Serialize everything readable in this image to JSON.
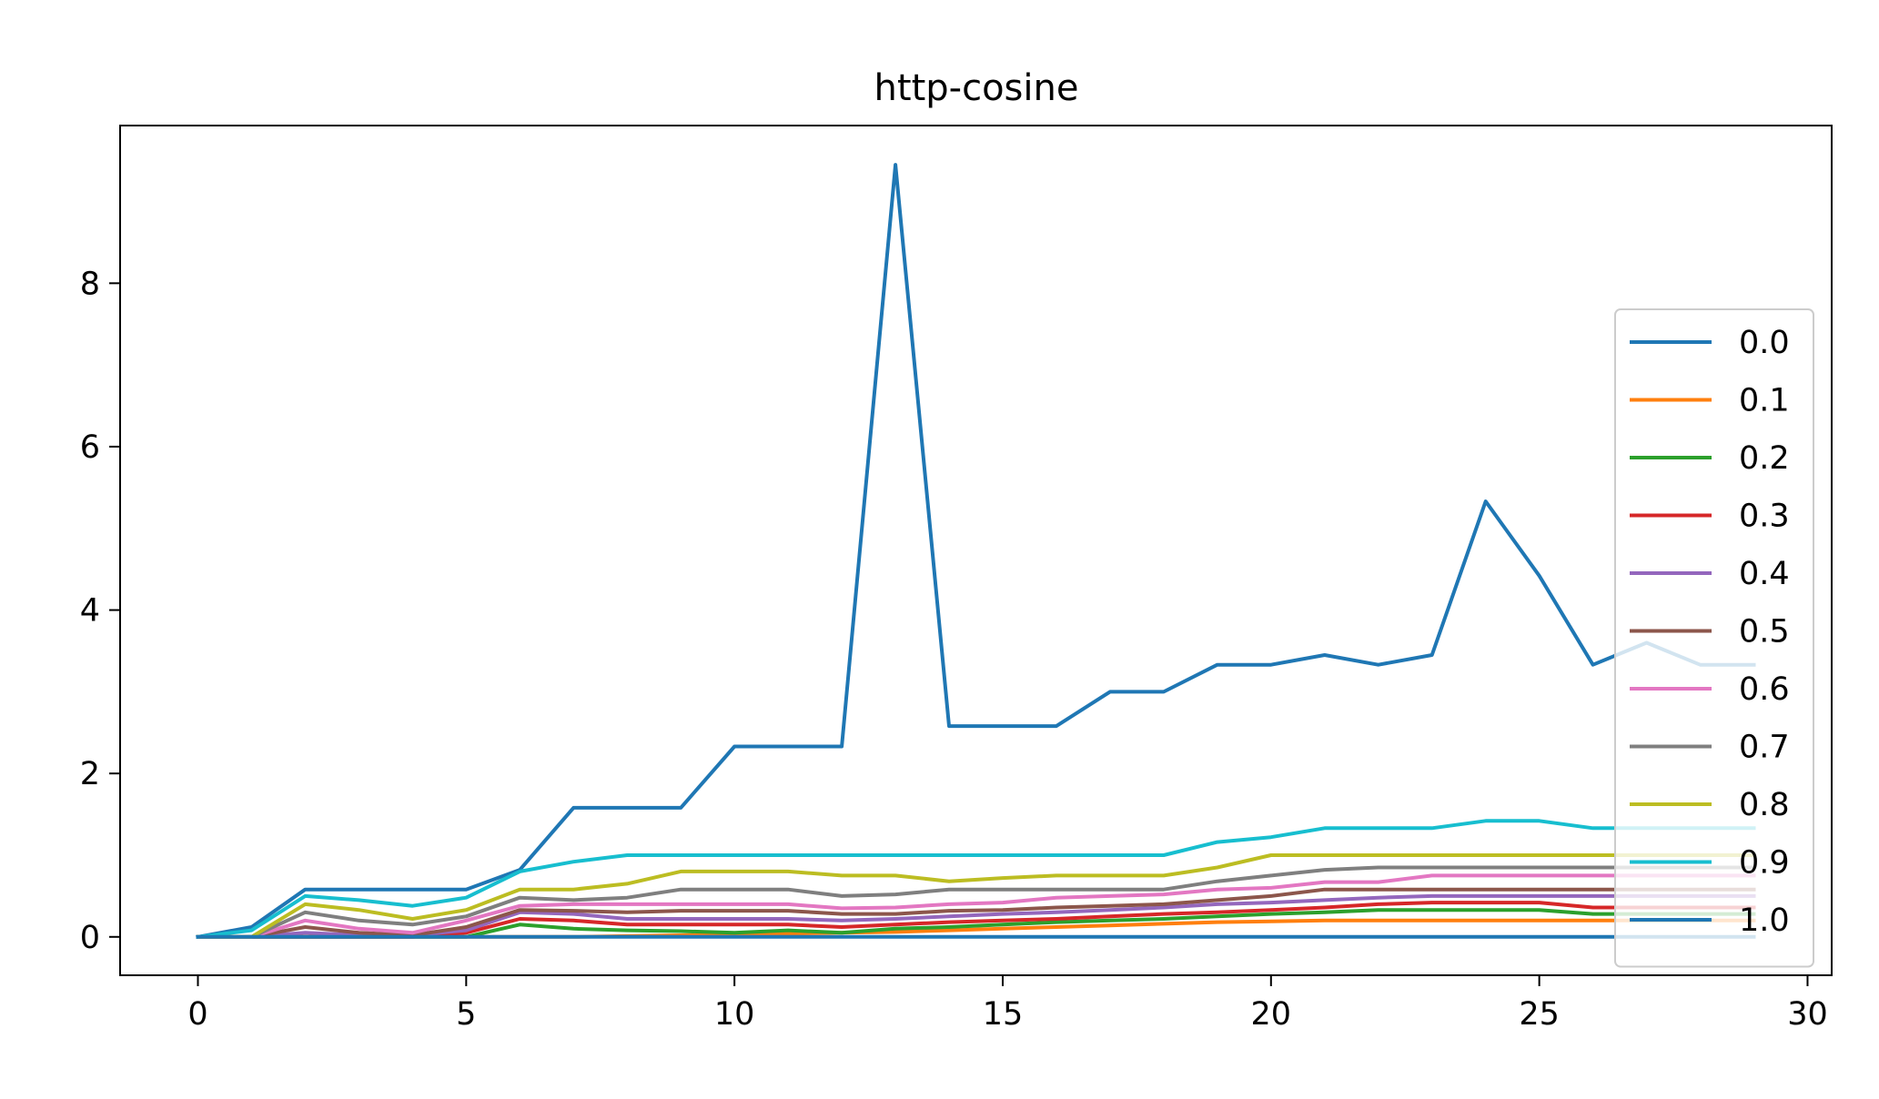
{
  "chart_data": {
    "type": "line",
    "title": "http-cosine",
    "xlabel": "",
    "ylabel": "",
    "xlim": [
      -1.45,
      30.45
    ],
    "ylim": [
      -0.47,
      9.93
    ],
    "x_ticks": [
      0,
      5,
      10,
      15,
      20,
      25,
      30
    ],
    "y_ticks": [
      0,
      2,
      4,
      6,
      8
    ],
    "grid": false,
    "legend_position": "center-right",
    "x": [
      0,
      1,
      2,
      3,
      4,
      5,
      6,
      7,
      8,
      9,
      10,
      11,
      12,
      13,
      14,
      15,
      16,
      17,
      18,
      19,
      20,
      21,
      22,
      23,
      24,
      25,
      26,
      27,
      28,
      29
    ],
    "series": [
      {
        "name": "0.0",
        "color": "#1f77b4",
        "values": [
          0,
          0.12,
          0.58,
          0.58,
          0.58,
          0.58,
          0.82,
          1.58,
          1.58,
          1.58,
          2.33,
          2.33,
          2.33,
          9.45,
          2.58,
          2.58,
          2.58,
          3.0,
          3.0,
          3.33,
          3.33,
          3.45,
          3.33,
          3.45,
          5.33,
          4.42,
          3.33,
          3.6,
          3.33,
          3.33
        ]
      },
      {
        "name": "0.1",
        "color": "#ff7f0e",
        "values": [
          0,
          0,
          0,
          0,
          0,
          0,
          0,
          0,
          0.01,
          0.02,
          0.03,
          0.04,
          0.05,
          0.06,
          0.08,
          0.1,
          0.12,
          0.14,
          0.16,
          0.18,
          0.19,
          0.2,
          0.2,
          0.2,
          0.2,
          0.2,
          0.2,
          0.2,
          0.2,
          0.2
        ]
      },
      {
        "name": "0.2",
        "color": "#2ca02c",
        "values": [
          0,
          0,
          0,
          0,
          0,
          0,
          0.15,
          0.1,
          0.08,
          0.07,
          0.05,
          0.08,
          0.05,
          0.1,
          0.12,
          0.15,
          0.18,
          0.2,
          0.22,
          0.25,
          0.28,
          0.3,
          0.33,
          0.33,
          0.33,
          0.33,
          0.28,
          0.28,
          0.28,
          0.28
        ]
      },
      {
        "name": "0.3",
        "color": "#d62728",
        "values": [
          0,
          0,
          0,
          0,
          0,
          0.05,
          0.22,
          0.2,
          0.15,
          0.15,
          0.15,
          0.15,
          0.12,
          0.15,
          0.18,
          0.2,
          0.22,
          0.25,
          0.28,
          0.3,
          0.33,
          0.36,
          0.4,
          0.42,
          0.42,
          0.42,
          0.36,
          0.36,
          0.36,
          0.36
        ]
      },
      {
        "name": "0.4",
        "color": "#9467bd",
        "values": [
          0,
          0,
          0.05,
          0.02,
          0.02,
          0.08,
          0.3,
          0.28,
          0.22,
          0.22,
          0.22,
          0.22,
          0.2,
          0.22,
          0.25,
          0.28,
          0.3,
          0.33,
          0.36,
          0.4,
          0.42,
          0.45,
          0.48,
          0.5,
          0.5,
          0.5,
          0.5,
          0.5,
          0.5,
          0.5
        ]
      },
      {
        "name": "0.5",
        "color": "#8c564b",
        "values": [
          0,
          0,
          0.12,
          0.05,
          0.02,
          0.12,
          0.33,
          0.32,
          0.3,
          0.32,
          0.32,
          0.32,
          0.28,
          0.28,
          0.32,
          0.33,
          0.36,
          0.38,
          0.4,
          0.45,
          0.5,
          0.58,
          0.58,
          0.58,
          0.58,
          0.58,
          0.58,
          0.58,
          0.58,
          0.58
        ]
      },
      {
        "name": "0.6",
        "color": "#e377c2",
        "values": [
          0,
          0,
          0.2,
          0.1,
          0.05,
          0.2,
          0.38,
          0.4,
          0.4,
          0.4,
          0.4,
          0.4,
          0.35,
          0.36,
          0.4,
          0.42,
          0.48,
          0.5,
          0.52,
          0.58,
          0.6,
          0.67,
          0.67,
          0.75,
          0.75,
          0.75,
          0.75,
          0.75,
          0.75,
          0.75
        ]
      },
      {
        "name": "0.7",
        "color": "#7f7f7f",
        "values": [
          0,
          0,
          0.3,
          0.2,
          0.15,
          0.25,
          0.48,
          0.45,
          0.48,
          0.58,
          0.58,
          0.58,
          0.5,
          0.52,
          0.58,
          0.58,
          0.58,
          0.58,
          0.58,
          0.68,
          0.75,
          0.82,
          0.85,
          0.85,
          0.85,
          0.85,
          0.85,
          0.85,
          0.85,
          0.85
        ]
      },
      {
        "name": "0.8",
        "color": "#bcbd22",
        "values": [
          0,
          0,
          0.4,
          0.33,
          0.22,
          0.33,
          0.58,
          0.58,
          0.65,
          0.8,
          0.8,
          0.8,
          0.75,
          0.75,
          0.68,
          0.72,
          0.75,
          0.75,
          0.75,
          0.85,
          1.0,
          1.0,
          1.0,
          1.0,
          1.0,
          1.0,
          1.0,
          1.0,
          1.0,
          1.0
        ]
      },
      {
        "name": "0.9",
        "color": "#17becf",
        "values": [
          0,
          0.08,
          0.5,
          0.45,
          0.38,
          0.48,
          0.8,
          0.92,
          1.0,
          1.0,
          1.0,
          1.0,
          1.0,
          1.0,
          1.0,
          1.0,
          1.0,
          1.0,
          1.0,
          1.16,
          1.22,
          1.33,
          1.33,
          1.33,
          1.42,
          1.42,
          1.33,
          1.33,
          1.33,
          1.33
        ]
      },
      {
        "name": "1.0",
        "color": "#1f77b4",
        "values": [
          0,
          0,
          0,
          0,
          0,
          0,
          0,
          0,
          0,
          0,
          0,
          0,
          0,
          0,
          0,
          0,
          0,
          0,
          0,
          0,
          0,
          0,
          0,
          0,
          0,
          0,
          0,
          0,
          0,
          0
        ]
      }
    ]
  }
}
